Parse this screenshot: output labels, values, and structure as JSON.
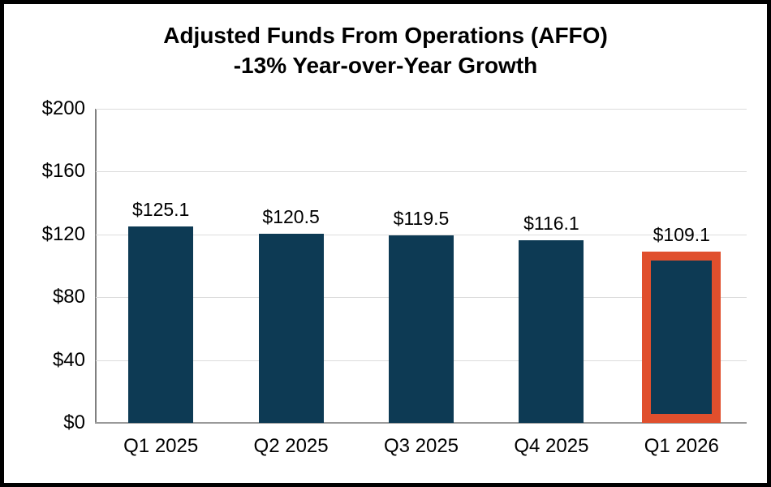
{
  "chart_data": {
    "type": "bar",
    "title": "Adjusted Funds From Operations (AFFO)",
    "subtitle": "-13% Year-over-Year Growth",
    "categories": [
      "Q1 2025",
      "Q2 2025",
      "Q3 2025",
      "Q4 2025",
      "Q1 2026"
    ],
    "values": [
      125.1,
      120.5,
      119.5,
      116.1,
      109.1
    ],
    "data_labels": [
      "$125.1",
      "$120.5",
      "$119.5",
      "$116.1",
      "$109.1"
    ],
    "xlabel": "",
    "ylabel": "",
    "ylim": [
      0,
      200
    ],
    "yticks": [
      0,
      40,
      80,
      120,
      160,
      200
    ],
    "ytick_labels": [
      "$0",
      "$40",
      "$80",
      "$120",
      "$160",
      "$200"
    ],
    "grid": "horizontal",
    "legend": "none",
    "highlighted_index": 4,
    "colors": {
      "bar_fill": "#0d3a54",
      "highlight_border": "#e04f2d",
      "gridline": "#dcdcdc",
      "y_axis_line": "#808080",
      "x_axis_line": "#9a9a9a",
      "frame_border": "#000000",
      "text": "#000000",
      "background": "#ffffff"
    }
  }
}
